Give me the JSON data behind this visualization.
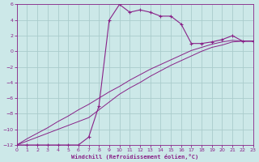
{
  "xlabel": "Windchill (Refroidissement éolien,°C)",
  "bg_color": "#cce8e8",
  "grid_color": "#aacccc",
  "line_color": "#882288",
  "xlim": [
    0,
    23
  ],
  "ylim": [
    -12,
    6
  ],
  "xticks": [
    0,
    1,
    2,
    3,
    4,
    5,
    6,
    7,
    8,
    9,
    10,
    11,
    12,
    13,
    14,
    15,
    16,
    17,
    18,
    19,
    20,
    21,
    22,
    23
  ],
  "yticks": [
    -12,
    -10,
    -8,
    -6,
    -4,
    -2,
    0,
    2,
    4,
    6
  ],
  "curve1_x": [
    0,
    1,
    2,
    3,
    4,
    5,
    6,
    7,
    8,
    9,
    10,
    11,
    12,
    13,
    14,
    15,
    16,
    17,
    18,
    19,
    20,
    21,
    22,
    23
  ],
  "curve1_y": [
    -12,
    -12,
    -12,
    -12,
    -12,
    -12,
    -12,
    -11,
    -7,
    4,
    6,
    5,
    5.3,
    5,
    4.5,
    4.5,
    3.5,
    1,
    1,
    1.2,
    1.5,
    2,
    1.3,
    1.3
  ],
  "curve2_x": [
    0,
    1,
    2,
    3,
    4,
    5,
    6,
    7,
    8,
    9,
    10,
    11,
    12,
    13,
    14,
    15,
    16,
    17,
    18,
    19,
    20,
    21,
    22,
    23
  ],
  "curve2_y": [
    -12,
    -11.5,
    -11.0,
    -10.5,
    -10.0,
    -9.5,
    -9.0,
    -8.5,
    -7.5,
    -6.5,
    -5.5,
    -4.7,
    -4.0,
    -3.2,
    -2.5,
    -1.8,
    -1.2,
    -0.6,
    0.0,
    0.5,
    0.8,
    1.2,
    1.3,
    1.3
  ],
  "curve3_x": [
    0,
    1,
    2,
    3,
    4,
    5,
    6,
    7,
    8,
    9,
    10,
    11,
    12,
    13,
    14,
    15,
    16,
    17,
    18,
    19,
    20,
    21,
    22,
    23
  ],
  "curve3_y": [
    -12,
    -11.2,
    -10.5,
    -9.8,
    -9.0,
    -8.3,
    -7.5,
    -6.8,
    -6.0,
    -5.2,
    -4.5,
    -3.7,
    -3.0,
    -2.3,
    -1.7,
    -1.1,
    -0.5,
    0.1,
    0.5,
    0.9,
    1.2,
    1.4,
    1.3,
    1.3
  ]
}
